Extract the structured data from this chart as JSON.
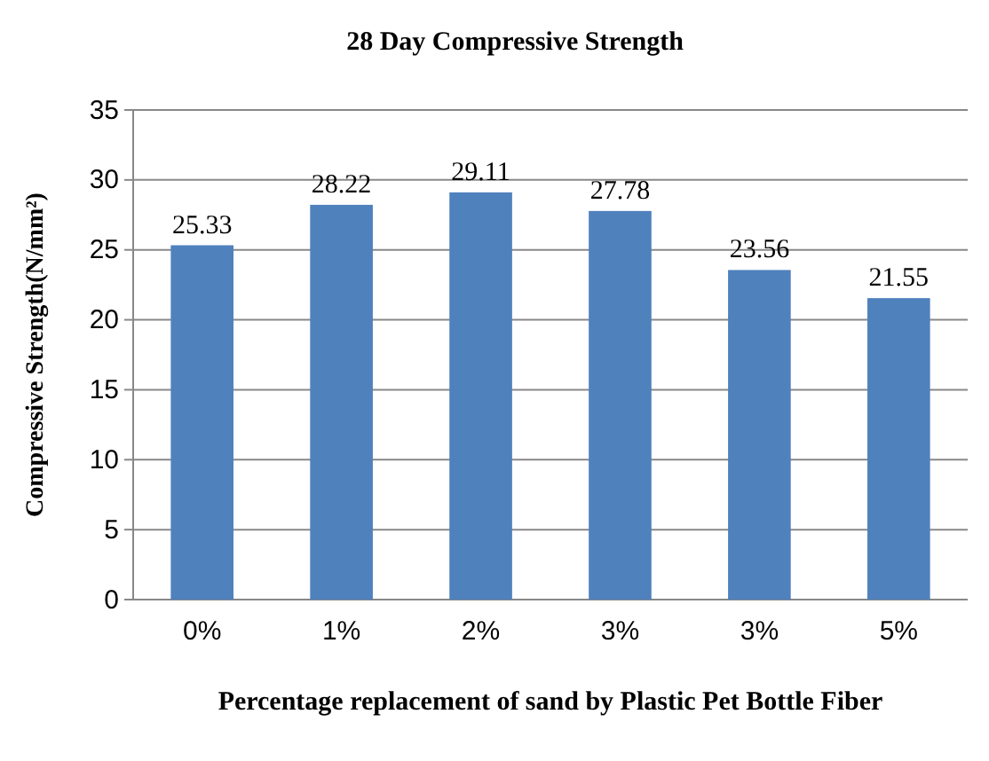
{
  "chart_data": {
    "type": "bar",
    "title": "28 Day Compressive Strength",
    "categories": [
      "0%",
      "1%",
      "2%",
      "3%",
      "3%",
      "5%"
    ],
    "values": [
      25.33,
      28.22,
      29.11,
      27.78,
      23.56,
      21.55
    ],
    "color": "#4f81bd",
    "xlabel": "Percentage replacement of sand by Plastic Pet Bottle Fiber",
    "ylabel": "Compressive Strength(N/mm²)",
    "ylim": [
      0,
      35
    ],
    "yticks": [
      0,
      5,
      10,
      15,
      20,
      25,
      30,
      35
    ],
    "grid": "y",
    "data_labels": true
  }
}
